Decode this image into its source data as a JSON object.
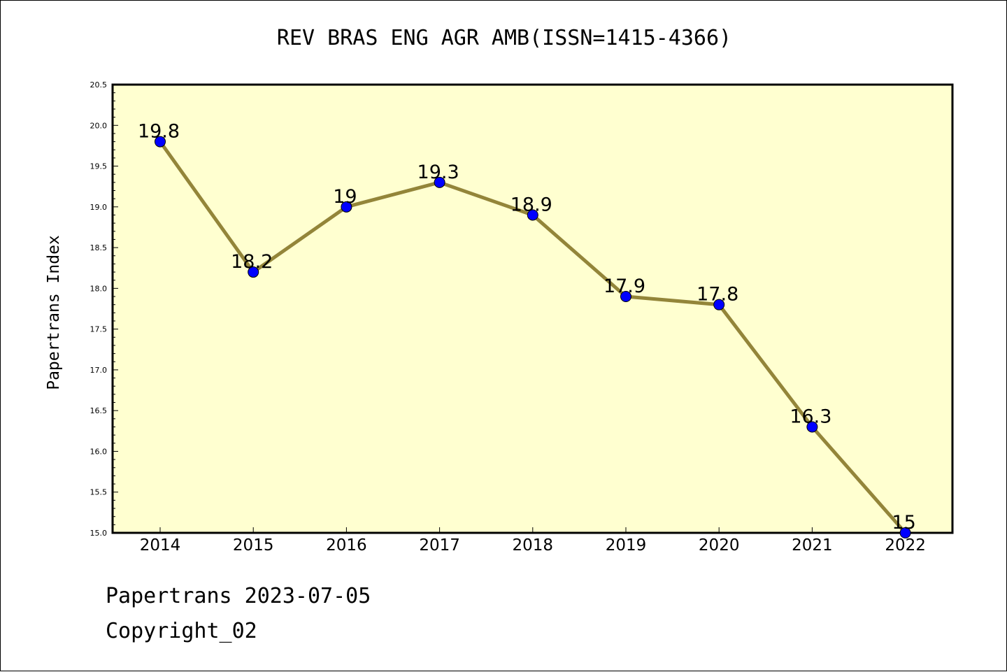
{
  "chart_data": {
    "type": "line",
    "title": "REV BRAS ENG AGR AMB(ISSN=1415-4366)",
    "xlabel": "",
    "ylabel": "Papertrans Index",
    "categories": [
      "2014",
      "2015",
      "2016",
      "2017",
      "2018",
      "2019",
      "2020",
      "2021",
      "2022"
    ],
    "series": [
      {
        "values": [
          19.8,
          18.2,
          19,
          19.3,
          18.9,
          17.9,
          17.8,
          16.3,
          15
        ],
        "data_labels": [
          "19.8",
          "18.2",
          "19",
          "19.3",
          "18.9",
          "17.9",
          "17.8",
          "16.3",
          "15"
        ]
      }
    ],
    "ylim": [
      15.0,
      20.5
    ],
    "yticks": [
      "15.0",
      "15.5",
      "16.0",
      "16.5",
      "17.0",
      "17.5",
      "18.0",
      "18.5",
      "19.0",
      "19.5",
      "20.0",
      "20.5"
    ],
    "grid": false,
    "colors": {
      "plot_background": "#FFFFD0",
      "line": "#938539",
      "marker": "#0000FF"
    }
  },
  "footer": {
    "date_line": "Papertrans 2023-07-05",
    "copyright_line": "Copyright_02"
  }
}
